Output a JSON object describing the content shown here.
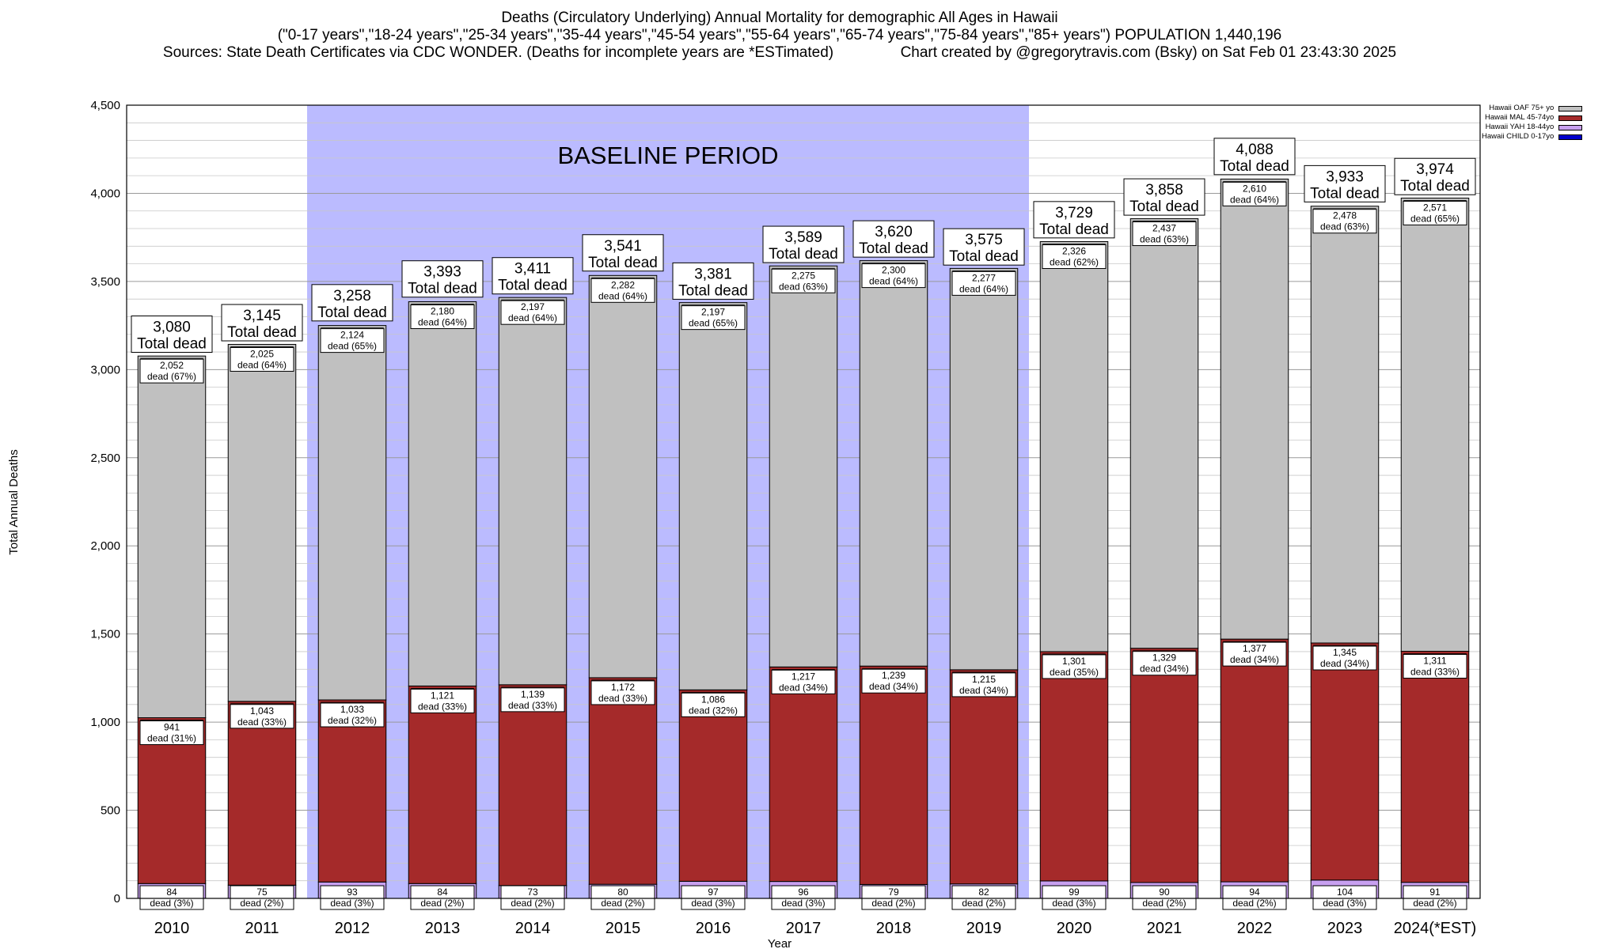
{
  "header": {
    "title": "Deaths (Circulatory Underlying) Annual Mortality for demographic All Ages in Hawaii",
    "subtitle": "(\"0-17 years\",\"18-24 years\",\"25-34 years\",\"35-44 years\",\"45-54 years\",\"55-64 years\",\"65-74 years\",\"75-84 years\",\"85+ years\") POPULATION 1,440,196",
    "sources": "Sources: State Death Certificates via CDC WONDER. (Deaths for incomplete years are *ESTimated)",
    "credit": "Chart created by @gregorytravis.com (Bsky) on Sat Feb 01 23:43:30 2025"
  },
  "chart_data": {
    "type": "bar",
    "stacked": true,
    "xlabel": "Year",
    "ylabel": "Total Annual Deaths",
    "ylim": [
      0,
      4500
    ],
    "y_major_ticks": [
      0,
      500,
      1000,
      1500,
      2000,
      2500,
      3000,
      3500,
      4000,
      4500
    ],
    "y_tick_labels": [
      "0",
      "500",
      "1,000",
      "1,500",
      "2,000",
      "2,500",
      "3,000",
      "3,500",
      "4,000",
      "4,500"
    ],
    "grid": true,
    "legend_position": "top-right",
    "categories": [
      "2010",
      "2011",
      "2012",
      "2013",
      "2014",
      "2015",
      "2016",
      "2017",
      "2018",
      "2019",
      "2020",
      "2021",
      "2022",
      "2023",
      "2024(*EST)"
    ],
    "series": [
      {
        "name": "Hawaii CHILD 0-17yo",
        "color": "#0000cc",
        "values": [
          0,
          0,
          0,
          0,
          0,
          0,
          0,
          0,
          0,
          0,
          0,
          0,
          0,
          0,
          0
        ]
      },
      {
        "name": "Hawaii YAH 18-44yo",
        "color": "#c8a0f0",
        "values": [
          84,
          75,
          93,
          84,
          73,
          80,
          97,
          96,
          79,
          82,
          99,
          90,
          94,
          104,
          91
        ],
        "labels": [
          "dead (3%)",
          "dead (2%)",
          "dead (3%)",
          "dead (2%)",
          "dead (2%)",
          "dead (2%)",
          "dead (3%)",
          "dead (3%)",
          "dead (2%)",
          "dead (2%)",
          "dead (3%)",
          "dead (2%)",
          "dead (2%)",
          "dead (3%)",
          "dead (2%)"
        ]
      },
      {
        "name": "Hawaii MAL 45-74yo",
        "color": "#a52a2a",
        "values": [
          941,
          1043,
          1033,
          1121,
          1139,
          1172,
          1086,
          1217,
          1239,
          1215,
          1301,
          1329,
          1377,
          1345,
          1311
        ],
        "labels": [
          "dead (31%)",
          "dead (33%)",
          "dead (32%)",
          "dead (33%)",
          "dead (33%)",
          "dead (33%)",
          "dead (32%)",
          "dead (34%)",
          "dead (34%)",
          "dead (34%)",
          "dead (35%)",
          "dead (34%)",
          "dead (34%)",
          "dead (34%)",
          "dead (33%)"
        ]
      },
      {
        "name": "Hawaii OAF 75+ yo",
        "color": "#c0c0c0",
        "values": [
          2052,
          2025,
          2124,
          2180,
          2197,
          2282,
          2197,
          2275,
          2300,
          2277,
          2326,
          2437,
          2610,
          2478,
          2571
        ],
        "labels": [
          "dead (67%)",
          "dead (64%)",
          "dead (65%)",
          "dead (64%)",
          "dead (64%)",
          "dead (64%)",
          "dead (65%)",
          "dead (63%)",
          "dead (64%)",
          "dead (64%)",
          "dead (62%)",
          "dead (63%)",
          "dead (64%)",
          "dead (63%)",
          "dead (65%)"
        ]
      }
    ],
    "totals": [
      3080,
      3145,
      3258,
      3393,
      3411,
      3541,
      3381,
      3589,
      3620,
      3575,
      3729,
      3858,
      4088,
      3933,
      3974
    ],
    "totals_display": [
      "3,080",
      "3,145",
      "3,258",
      "3,393",
      "3,411",
      "3,541",
      "3,381",
      "3,589",
      "3,620",
      "3,575",
      "3,729",
      "3,858",
      "4,088",
      "3,933",
      "3,974"
    ],
    "total_caption": "Total dead",
    "annotation": {
      "text": "BASELINE PERIOD",
      "color": "#bbbbff",
      "from_category": "2012",
      "to_category": "2019"
    }
  }
}
